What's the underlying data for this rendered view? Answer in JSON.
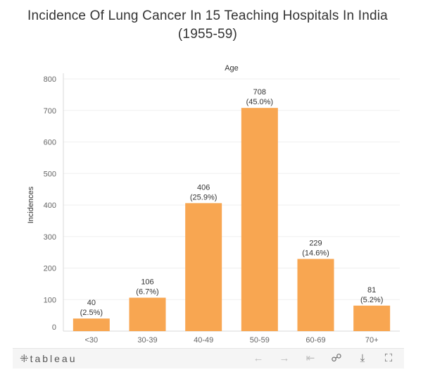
{
  "title_line1": "Incidence Of Lung Cancer In 15 Teaching Hospitals In India",
  "title_line2": "(1955-59)",
  "chart_data": {
    "type": "bar",
    "title": "Incidence Of Lung Cancer In 15 Teaching Hospitals In India (1955-59)",
    "xlabel": "Age",
    "ylabel": "Incidences",
    "categories": [
      "<30",
      "30-39",
      "40-49",
      "50-59",
      "60-69",
      "70+"
    ],
    "values": [
      40,
      106,
      406,
      708,
      229,
      81
    ],
    "percent_labels": [
      "(2.5%)",
      "(6.7%)",
      "(25.9%)",
      "(45.0%)",
      "(14.6%)",
      "(5.2%)"
    ],
    "ylim": [
      0,
      800
    ],
    "yticks": [
      0,
      100,
      200,
      300,
      400,
      500,
      600,
      700,
      800
    ],
    "bar_color": "#f8a651",
    "grid": true,
    "xlabel_position": "top"
  },
  "toolbar": {
    "brand_logo": "⁜",
    "brand_text": "tableau",
    "icons": [
      {
        "name": "undo-icon",
        "glyph": "←"
      },
      {
        "name": "redo-icon",
        "glyph": "→"
      },
      {
        "name": "revert-icon",
        "glyph": "⇤"
      },
      {
        "name": "share-icon",
        "glyph": "☍"
      },
      {
        "name": "download-icon",
        "glyph": "⤓"
      },
      {
        "name": "fullscreen-icon",
        "glyph": "⛶"
      }
    ]
  }
}
